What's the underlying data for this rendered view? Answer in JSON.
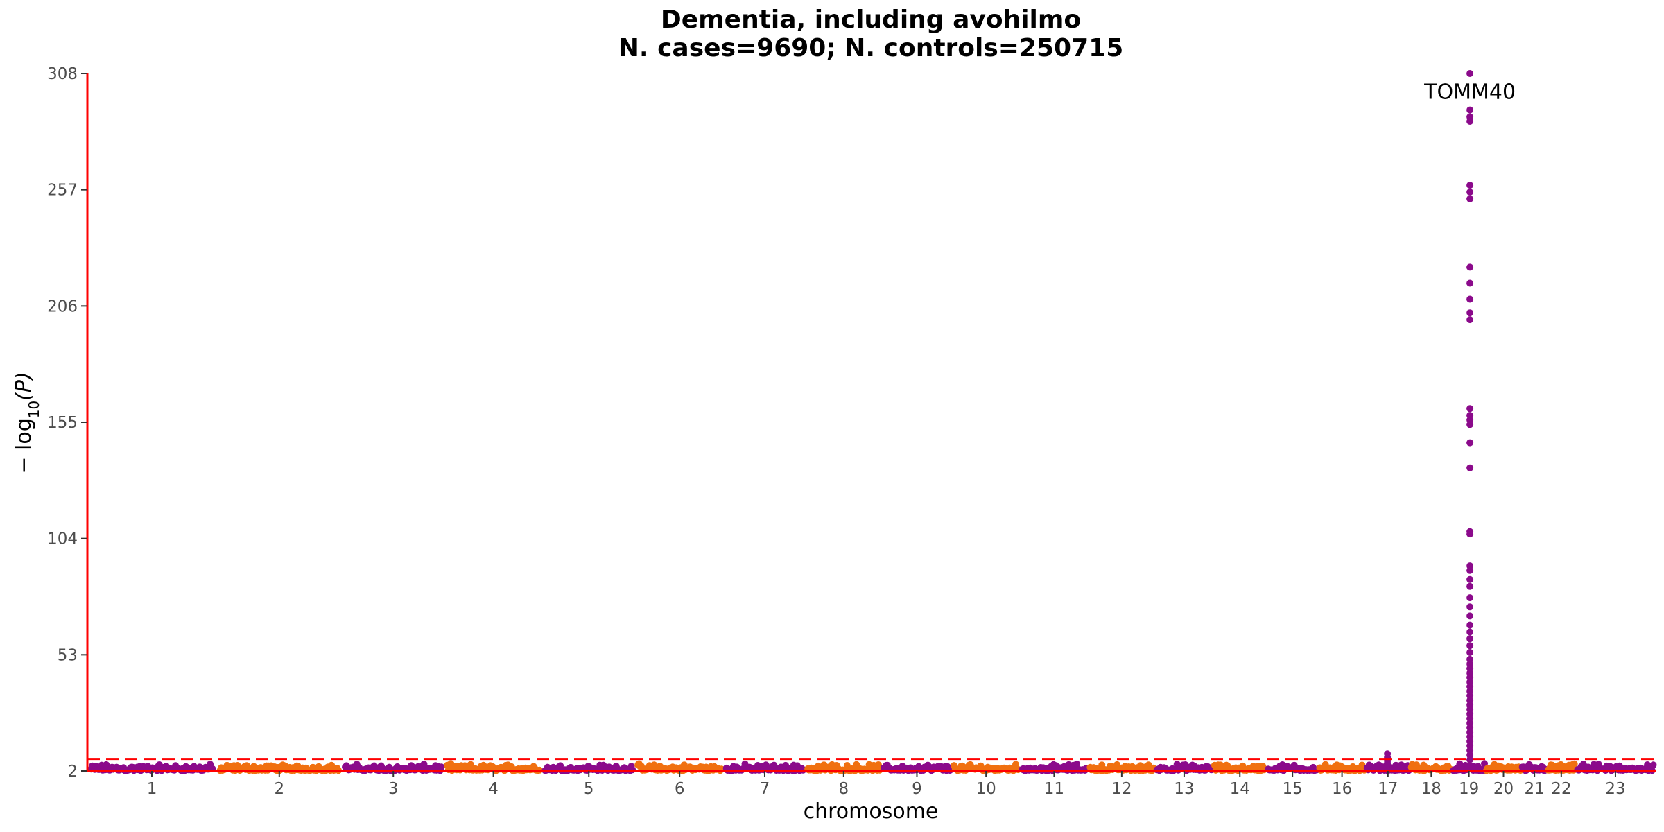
{
  "chart_data": {
    "type": "scatter",
    "title_line1": "Dementia, including avohilmo",
    "title_line2": "N. cases=9690; N. controls=250715",
    "xlabel": "chromosome",
    "ylabel_prefix": "− log",
    "ylabel_sub": "10",
    "ylabel_suffix": "(P)",
    "ylim": [
      2,
      308
    ],
    "yticks": [
      2,
      53,
      104,
      155,
      206,
      257,
      308
    ],
    "significance_line": 7.3,
    "colors": {
      "odd": "#8b0a8b",
      "even": "#f07010",
      "threshold": "#ff0000",
      "axis": "#ff0000"
    },
    "chromosomes": [
      {
        "label": "1",
        "start": 0.0,
        "end": 12.5
      },
      {
        "label": "2",
        "start": 12.5,
        "end": 24.7
      },
      {
        "label": "3",
        "start": 24.7,
        "end": 34.6
      },
      {
        "label": "4",
        "start": 34.6,
        "end": 44.1
      },
      {
        "label": "5",
        "start": 44.1,
        "end": 53.1
      },
      {
        "label": "6",
        "start": 53.1,
        "end": 61.7
      },
      {
        "label": "7",
        "start": 61.7,
        "end": 69.6
      },
      {
        "label": "8",
        "start": 69.6,
        "end": 77.0
      },
      {
        "label": "9",
        "start": 77.0,
        "end": 83.8
      },
      {
        "label": "10",
        "start": 83.8,
        "end": 90.4
      },
      {
        "label": "11",
        "start": 90.4,
        "end": 97.0
      },
      {
        "label": "12",
        "start": 97.0,
        "end": 103.5
      },
      {
        "label": "13",
        "start": 103.5,
        "end": 109.1
      },
      {
        "label": "14",
        "start": 109.1,
        "end": 114.3
      },
      {
        "label": "15",
        "start": 114.3,
        "end": 119.3
      },
      {
        "label": "16",
        "start": 119.3,
        "end": 123.9
      },
      {
        "label": "17",
        "start": 123.9,
        "end": 128.2
      },
      {
        "label": "18",
        "start": 128.2,
        "end": 132.3
      },
      {
        "label": "19",
        "start": 132.3,
        "end": 135.5
      },
      {
        "label": "20",
        "start": 135.5,
        "end": 139.0
      },
      {
        "label": "21",
        "start": 139.0,
        "end": 141.5
      },
      {
        "label": "22",
        "start": 141.5,
        "end": 144.2
      },
      {
        "label": "23",
        "start": 144.2,
        "end": 152.0
      }
    ],
    "peaks": [
      {
        "chromosome": "17",
        "x": 126.0,
        "values": [
          9.5,
          8.0,
          6.5,
          5.5,
          5.0
        ]
      },
      {
        "chromosome": "19",
        "x": 134.0,
        "values": [
          308,
          292,
          289,
          287,
          259,
          256,
          253,
          223,
          216,
          209,
          203,
          200,
          161,
          158,
          156,
          154,
          146,
          135,
          107,
          106,
          92,
          90,
          86,
          83,
          78,
          74,
          70,
          66,
          63,
          60,
          57,
          54,
          51,
          49,
          47,
          45,
          43,
          41,
          39,
          37,
          35,
          33,
          31,
          29,
          27,
          25,
          23,
          21,
          19,
          17,
          15,
          13,
          11,
          9,
          7
        ]
      }
    ],
    "annotations": [
      {
        "text": "TOMM40",
        "x": 134.0,
        "y": 300
      }
    ]
  }
}
